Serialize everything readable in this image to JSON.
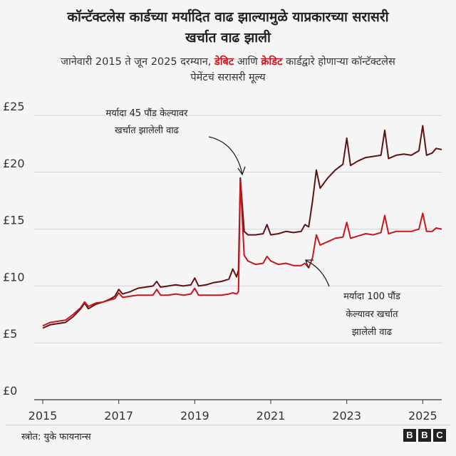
{
  "title_line1": "कॉन्टॅक्टलेस कार्डच्या मर्यादित वाढ झाल्यामुळे याप्रकारच्या सरासरी",
  "title_line2": "खर्चात वाढ झाली",
  "subtitle_line1_pre": "जानेवारी 2015 ते जून 2025 दरम्यान, ",
  "subtitle_debit": "डेबिट",
  "subtitle_and": " आणि ",
  "subtitle_credit": "क्रेडिट",
  "subtitle_line1_post": " कार्डद्वारे होणाऱ्या कॉन्टॅक्टलेस",
  "subtitle_line2": "पेमेंटचं सरासरी मूल्य",
  "annotation_45_line1": "मर्यादा 45 पौंड केल्यावर",
  "annotation_45_line2": "खर्चात झालेली वाढ",
  "annotation_100_line1": "मर्यादा 100 पौंड",
  "annotation_100_line2": "केल्यावर खर्चात",
  "annotation_100_line3": "झालेली वाढ",
  "source": "स्त्रोत: युके फायनान्स",
  "logo": [
    "B",
    "B",
    "C"
  ],
  "colors": {
    "debit": "#5e1212",
    "credit": "#c8161d",
    "grid": "#d4d4d4",
    "axis": "#333333"
  },
  "chart_data": {
    "type": "line",
    "xlim": [
      2015,
      2025.5
    ],
    "ylim": [
      0,
      25
    ],
    "x_ticks": [
      2015,
      2017,
      2019,
      2021,
      2023,
      2025
    ],
    "y_ticks": [
      0,
      5,
      10,
      15,
      20,
      25
    ],
    "y_tick_labels": [
      "£0",
      "£5",
      "£10",
      "£15",
      "£20",
      "£25"
    ],
    "grid": true,
    "series": [
      {
        "key": "debit",
        "points": [
          [
            2015,
            6.3
          ],
          [
            2015.2,
            6.6
          ],
          [
            2015.4,
            6.7
          ],
          [
            2015.6,
            6.8
          ],
          [
            2015.8,
            7.3
          ],
          [
            2016.0,
            8.0
          ],
          [
            2016.1,
            8.5
          ],
          [
            2016.2,
            8.0
          ],
          [
            2016.4,
            8.4
          ],
          [
            2016.6,
            8.6
          ],
          [
            2016.8,
            8.9
          ],
          [
            2016.9,
            9.1
          ],
          [
            2017.0,
            9.7
          ],
          [
            2017.1,
            9.3
          ],
          [
            2017.3,
            9.5
          ],
          [
            2017.5,
            9.8
          ],
          [
            2017.7,
            9.9
          ],
          [
            2017.9,
            10.0
          ],
          [
            2018.0,
            10.4
          ],
          [
            2018.1,
            9.9
          ],
          [
            2018.3,
            10.0
          ],
          [
            2018.5,
            10.1
          ],
          [
            2018.7,
            10.0
          ],
          [
            2018.9,
            10.1
          ],
          [
            2019.0,
            10.7
          ],
          [
            2019.1,
            10.0
          ],
          [
            2019.3,
            10.1
          ],
          [
            2019.5,
            10.3
          ],
          [
            2019.7,
            10.4
          ],
          [
            2019.9,
            10.6
          ],
          [
            2020.0,
            11.5
          ],
          [
            2020.1,
            10.8
          ],
          [
            2020.15,
            11.4
          ],
          [
            2020.2,
            19.5
          ],
          [
            2020.3,
            14.8
          ],
          [
            2020.4,
            14.5
          ],
          [
            2020.6,
            14.5
          ],
          [
            2020.8,
            14.6
          ],
          [
            2020.9,
            15.4
          ],
          [
            2021.0,
            14.5
          ],
          [
            2021.2,
            14.6
          ],
          [
            2021.4,
            14.8
          ],
          [
            2021.6,
            14.7
          ],
          [
            2021.8,
            14.8
          ],
          [
            2021.9,
            15.4
          ],
          [
            2022.0,
            15.2
          ],
          [
            2022.1,
            17.5
          ],
          [
            2022.2,
            20.2
          ],
          [
            2022.3,
            18.6
          ],
          [
            2022.5,
            19.5
          ],
          [
            2022.7,
            20.2
          ],
          [
            2022.9,
            20.7
          ],
          [
            2023.0,
            23.0
          ],
          [
            2023.1,
            20.6
          ],
          [
            2023.3,
            21.0
          ],
          [
            2023.5,
            21.3
          ],
          [
            2023.7,
            21.4
          ],
          [
            2023.9,
            21.5
          ],
          [
            2024.0,
            23.7
          ],
          [
            2024.1,
            21.2
          ],
          [
            2024.3,
            21.5
          ],
          [
            2024.5,
            21.6
          ],
          [
            2024.7,
            21.5
          ],
          [
            2024.9,
            21.9
          ],
          [
            2025.0,
            24.1
          ],
          [
            2025.1,
            21.5
          ],
          [
            2025.25,
            21.7
          ],
          [
            2025.35,
            22.1
          ],
          [
            2025.5,
            22.0
          ]
        ]
      },
      {
        "key": "credit",
        "points": [
          [
            2015,
            6.5
          ],
          [
            2015.2,
            6.8
          ],
          [
            2015.4,
            6.9
          ],
          [
            2015.6,
            7.0
          ],
          [
            2015.8,
            7.5
          ],
          [
            2016.0,
            8.1
          ],
          [
            2016.1,
            8.6
          ],
          [
            2016.2,
            8.2
          ],
          [
            2016.4,
            8.5
          ],
          [
            2016.6,
            8.6
          ],
          [
            2016.8,
            8.8
          ],
          [
            2016.9,
            8.9
          ],
          [
            2017.0,
            9.4
          ],
          [
            2017.1,
            9.0
          ],
          [
            2017.3,
            9.1
          ],
          [
            2017.5,
            9.2
          ],
          [
            2017.7,
            9.2
          ],
          [
            2017.9,
            9.2
          ],
          [
            2018.0,
            9.7
          ],
          [
            2018.1,
            9.2
          ],
          [
            2018.3,
            9.2
          ],
          [
            2018.5,
            9.3
          ],
          [
            2018.7,
            9.2
          ],
          [
            2018.9,
            9.3
          ],
          [
            2019.0,
            9.8
          ],
          [
            2019.1,
            9.2
          ],
          [
            2019.3,
            9.2
          ],
          [
            2019.5,
            9.2
          ],
          [
            2019.7,
            9.2
          ],
          [
            2019.9,
            9.3
          ],
          [
            2020.0,
            9.4
          ],
          [
            2020.1,
            9.3
          ],
          [
            2020.15,
            9.5
          ],
          [
            2020.2,
            19.2
          ],
          [
            2020.3,
            12.7
          ],
          [
            2020.4,
            12.2
          ],
          [
            2020.6,
            11.9
          ],
          [
            2020.8,
            12.0
          ],
          [
            2020.9,
            12.6
          ],
          [
            2021.0,
            12.2
          ],
          [
            2021.2,
            11.9
          ],
          [
            2021.4,
            12.0
          ],
          [
            2021.6,
            11.8
          ],
          [
            2021.8,
            11.8
          ],
          [
            2021.9,
            12.0
          ],
          [
            2022.0,
            11.6
          ],
          [
            2022.1,
            12.5
          ],
          [
            2022.2,
            14.5
          ],
          [
            2022.3,
            13.6
          ],
          [
            2022.5,
            13.9
          ],
          [
            2022.7,
            14.2
          ],
          [
            2022.9,
            14.3
          ],
          [
            2023.0,
            15.6
          ],
          [
            2023.1,
            14.2
          ],
          [
            2023.3,
            14.4
          ],
          [
            2023.5,
            14.6
          ],
          [
            2023.7,
            14.5
          ],
          [
            2023.9,
            14.7
          ],
          [
            2024.0,
            16.2
          ],
          [
            2024.1,
            14.6
          ],
          [
            2024.3,
            14.8
          ],
          [
            2024.5,
            14.8
          ],
          [
            2024.7,
            14.8
          ],
          [
            2024.9,
            15.0
          ],
          [
            2025.0,
            16.4
          ],
          [
            2025.1,
            14.8
          ],
          [
            2025.25,
            14.8
          ],
          [
            2025.35,
            15.1
          ],
          [
            2025.5,
            15.0
          ]
        ]
      }
    ]
  }
}
